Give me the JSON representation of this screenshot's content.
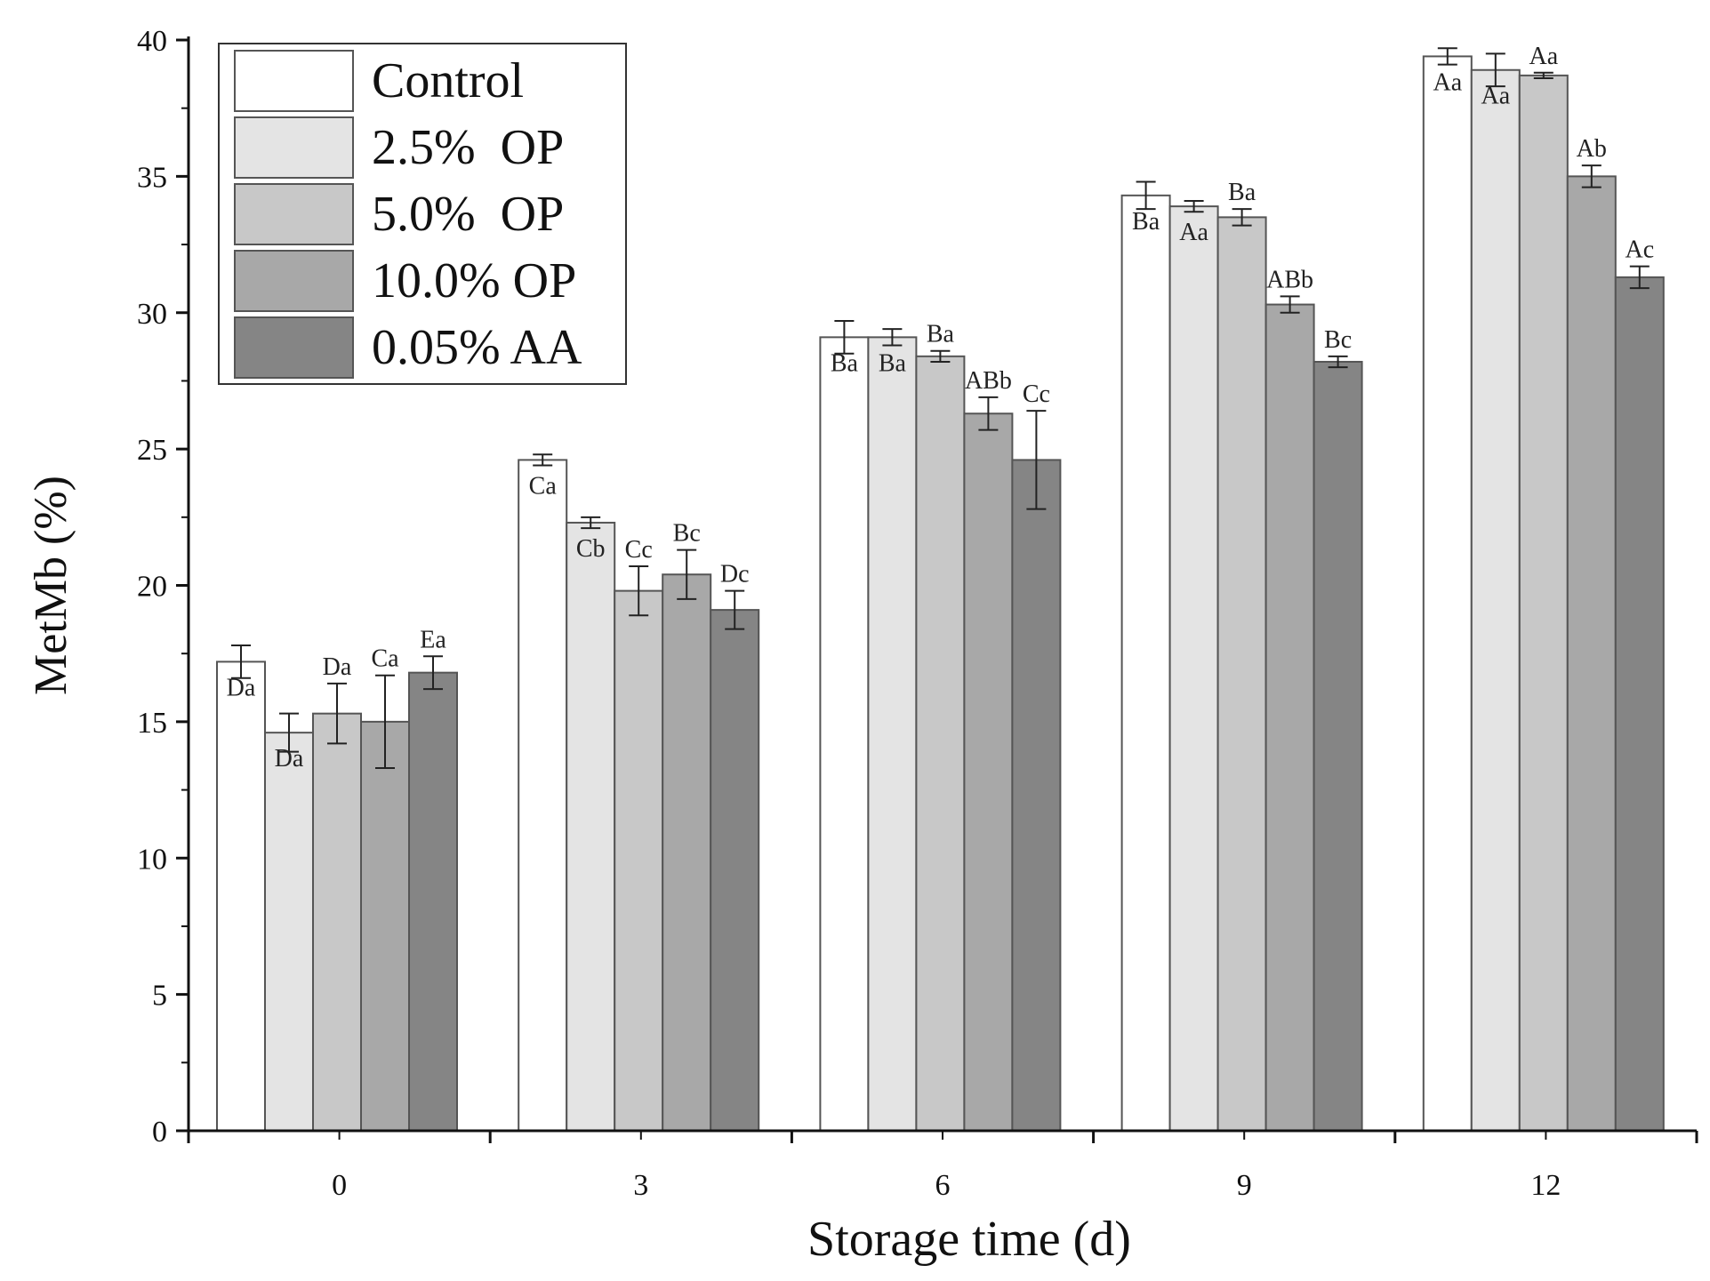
{
  "chart_data": {
    "type": "bar",
    "title": "",
    "xlabel": "Storage time (d)",
    "ylabel": "MetMb (%)",
    "ylim": [
      0,
      40
    ],
    "yticks": [
      0,
      5,
      10,
      15,
      20,
      25,
      30,
      35,
      40
    ],
    "categories": [
      "0",
      "3",
      "6",
      "9",
      "12"
    ],
    "series": [
      {
        "name": "Control",
        "color": "#ffffff",
        "values": [
          17.2,
          24.6,
          29.1,
          34.3,
          39.4
        ],
        "errors": [
          0.6,
          0.2,
          0.6,
          0.5,
          0.3
        ],
        "labels": [
          "Da",
          "Ca",
          "Ba",
          "Ba",
          "Aa"
        ]
      },
      {
        "name": "2.5%  OP",
        "color": "#e4e4e4",
        "values": [
          14.6,
          22.3,
          29.1,
          33.9,
          38.9
        ],
        "errors": [
          0.7,
          0.2,
          0.3,
          0.2,
          0.6
        ],
        "labels": [
          "Da",
          "Cb",
          "Ba",
          "Aa",
          "Aa"
        ]
      },
      {
        "name": "5.0%  OP",
        "color": "#c8c8c8",
        "values": [
          15.3,
          19.8,
          28.4,
          33.5,
          38.7
        ],
        "errors": [
          1.1,
          0.9,
          0.2,
          0.3,
          0.1
        ],
        "labels": [
          "Da",
          "Cc",
          "Ba",
          "Ba",
          "Aa"
        ]
      },
      {
        "name": "10.0% OP",
        "color": "#a8a8a8",
        "values": [
          15.0,
          20.4,
          26.3,
          30.3,
          35.0
        ],
        "errors": [
          1.7,
          0.9,
          0.6,
          0.3,
          0.4
        ],
        "labels": [
          "Ca",
          "Bc",
          "ABb",
          "ABb",
          "Ab"
        ]
      },
      {
        "name": "0.05% AA",
        "color": "#858585",
        "values": [
          16.8,
          19.1,
          24.6,
          28.2,
          31.3
        ],
        "errors": [
          0.6,
          0.7,
          1.8,
          0.2,
          0.4
        ],
        "labels": [
          "Ea",
          "Dc",
          "Cc",
          "Bc",
          "Ac"
        ]
      }
    ],
    "legend": {
      "position": "top-left"
    }
  }
}
